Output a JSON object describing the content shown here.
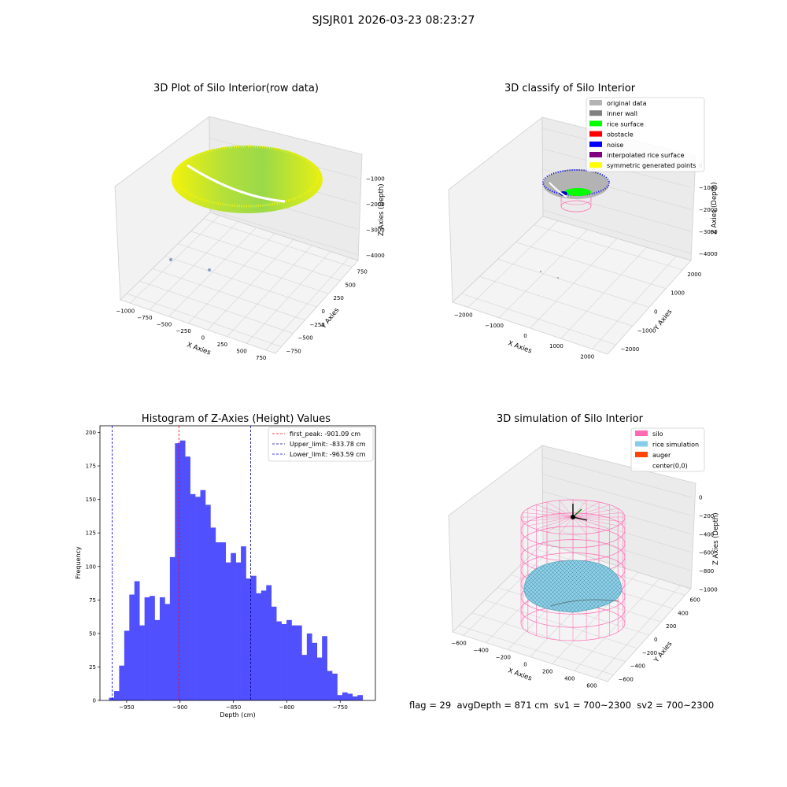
{
  "page": {
    "suptitle": "SJSJR01 2026-03-23 08:23:27",
    "status_line": "flag = 29  avgDepth = 871 cm  sv1 = 700~2300  sv2 = 700~2300"
  },
  "chart_data": [
    {
      "type": "scatter",
      "projection": "3d",
      "title": "3D Plot of Silo Interior(row data)",
      "xlabel": "X Axies",
      "ylabel": "Y Axies",
      "zlabel": "Z Axies (Depth)",
      "xticks": [
        "−1000",
        "−750",
        "−500",
        "−250",
        "0",
        "250",
        "500",
        "750"
      ],
      "yticks": [
        "−750",
        "−500",
        "−250",
        "0",
        "250",
        "500",
        "750"
      ],
      "zticks": [
        "−1000",
        "−2000",
        "−3000",
        "−4000"
      ],
      "colormap": [
        "#f2f20a",
        "#9ad94a"
      ]
    },
    {
      "type": "scatter",
      "projection": "3d",
      "title": "3D classify of Silo Interior",
      "xlabel": "X Axies",
      "ylabel": "Y Axies",
      "zlabel": "Z Axies (Depth)",
      "xticks": [
        "−2000",
        "−1000",
        "0",
        "1000",
        "2000"
      ],
      "yticks": [
        "−2000",
        "−1000",
        "0",
        "1000",
        "2000"
      ],
      "zticks": [
        "0",
        "−1000",
        "−2000",
        "−3000",
        "−4000"
      ],
      "legend_position": "top-right",
      "legend": [
        {
          "label": "original data",
          "color": "#b3b3b3"
        },
        {
          "label": "inner wall",
          "color": "#808080"
        },
        {
          "label": "rice surface",
          "color": "#00ff00"
        },
        {
          "label": "obstacle",
          "color": "#ff0000"
        },
        {
          "label": "noise",
          "color": "#0000ff"
        },
        {
          "label": "interpolated rice surface",
          "color": "#800080"
        },
        {
          "label": "symmetric generated points",
          "color": "#ffff00"
        }
      ]
    },
    {
      "type": "bar",
      "title": "Histogram of Z-Axies (Height) Values",
      "xlabel": "Depth (cm)",
      "ylabel": "Frequency",
      "xlim": [
        -975,
        -717
      ],
      "ylim": [
        0,
        205
      ],
      "xticks": [
        -950,
        -900,
        -850,
        -800,
        -750
      ],
      "yticks": [
        0,
        25,
        50,
        75,
        100,
        125,
        150,
        175,
        200
      ],
      "bar_color": "#5050ff",
      "bin_start": -966.5,
      "bin_width": 4.75,
      "values": [
        2,
        7,
        26,
        52,
        79,
        89,
        56,
        77,
        78,
        60,
        77,
        72,
        107,
        192,
        194,
        182,
        154,
        152,
        157,
        146,
        129,
        118,
        118,
        103,
        110,
        103,
        115,
        91,
        93,
        80,
        82,
        86,
        70,
        59,
        57,
        60,
        56,
        56,
        34,
        50,
        43,
        32,
        48,
        22,
        20,
        4,
        6,
        5,
        3,
        4
      ],
      "vlines": [
        {
          "label": "first_peak: -901.09 cm",
          "x": -901.09,
          "color": "#ff0000"
        },
        {
          "label": "Upper_limit: -833.78 cm",
          "x": -833.78,
          "color": "#00008b"
        },
        {
          "label": "Lower_limit: -963.59 cm",
          "x": -963.59,
          "color": "#0000ff"
        }
      ],
      "legend_position": "top-right"
    },
    {
      "type": "scatter",
      "projection": "3d",
      "title": "3D simulation of Silo Interior",
      "xlabel": "X Axies",
      "ylabel": "Y Axies",
      "zlabel": "Z Axies (Depth)",
      "xticks": [
        "−600",
        "−400",
        "−200",
        "0",
        "200",
        "400",
        "600"
      ],
      "yticks": [
        "−600",
        "−400",
        "−200",
        "0",
        "200",
        "400",
        "600"
      ],
      "zticks": [
        "0",
        "−200",
        "−400",
        "−600",
        "−800",
        "−1000"
      ],
      "legend_position": "top-right",
      "legend": [
        {
          "label": "silo",
          "color": "#ff69b4"
        },
        {
          "label": "rice simulation",
          "color": "#87ceeb"
        },
        {
          "label": "auger",
          "color": "#ff4500"
        },
        {
          "label": "center(0,0)",
          "color": ""
        }
      ]
    }
  ]
}
